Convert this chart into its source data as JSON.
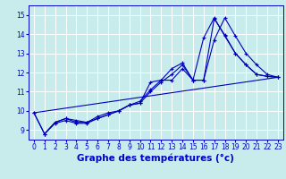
{
  "xlabel": "Graphe des températures (°c)",
  "xlim": [
    -0.5,
    23.5
  ],
  "ylim": [
    8.5,
    15.5
  ],
  "yticks": [
    9,
    10,
    11,
    12,
    13,
    14,
    15
  ],
  "xticks": [
    0,
    1,
    2,
    3,
    4,
    5,
    6,
    7,
    8,
    9,
    10,
    11,
    12,
    13,
    14,
    15,
    16,
    17,
    18,
    19,
    20,
    21,
    22,
    23
  ],
  "background_color": "#c8ecec",
  "grid_color": "#ffffff",
  "line_color": "#0000bb",
  "series": [
    {
      "x": [
        0,
        1,
        2,
        3,
        4,
        5,
        6,
        7,
        8,
        9,
        10,
        11,
        12,
        13,
        14,
        15,
        16,
        17,
        18,
        19,
        20,
        21,
        22,
        23
      ],
      "y": [
        9.9,
        8.8,
        9.4,
        9.6,
        9.5,
        9.4,
        9.7,
        9.9,
        10.0,
        10.3,
        10.4,
        11.5,
        11.6,
        12.2,
        12.5,
        11.6,
        13.8,
        14.85,
        13.9,
        13.0,
        12.4,
        11.9,
        11.8,
        11.75
      ],
      "marker": true
    },
    {
      "x": [
        0,
        1,
        2,
        3,
        4,
        5,
        6,
        7,
        8,
        9,
        10,
        11,
        12,
        13,
        14,
        15,
        16,
        17,
        18,
        19,
        20,
        21,
        22,
        23
      ],
      "y": [
        9.9,
        8.8,
        9.4,
        9.6,
        9.4,
        9.4,
        9.6,
        9.8,
        10.0,
        10.3,
        10.5,
        11.1,
        11.6,
        11.6,
        12.2,
        11.6,
        11.6,
        14.8,
        13.95,
        13.0,
        12.4,
        11.9,
        11.8,
        11.75
      ],
      "marker": true
    },
    {
      "x": [
        1,
        2,
        3,
        4,
        5,
        6,
        7,
        8,
        9,
        10,
        11,
        12,
        13,
        14,
        15,
        16,
        17,
        18,
        19,
        20,
        21,
        22,
        23
      ],
      "y": [
        8.8,
        9.35,
        9.5,
        9.35,
        9.35,
        9.6,
        9.8,
        10.0,
        10.3,
        10.4,
        11.0,
        11.5,
        11.9,
        12.4,
        11.6,
        11.6,
        13.7,
        14.85,
        13.9,
        13.0,
        12.4,
        11.9,
        11.75
      ],
      "marker": true
    },
    {
      "x": [
        0,
        23
      ],
      "y": [
        9.9,
        11.75
      ],
      "marker": false
    }
  ],
  "font_color": "#0000cc",
  "tick_fontsize": 5.5,
  "label_fontsize": 7.5
}
